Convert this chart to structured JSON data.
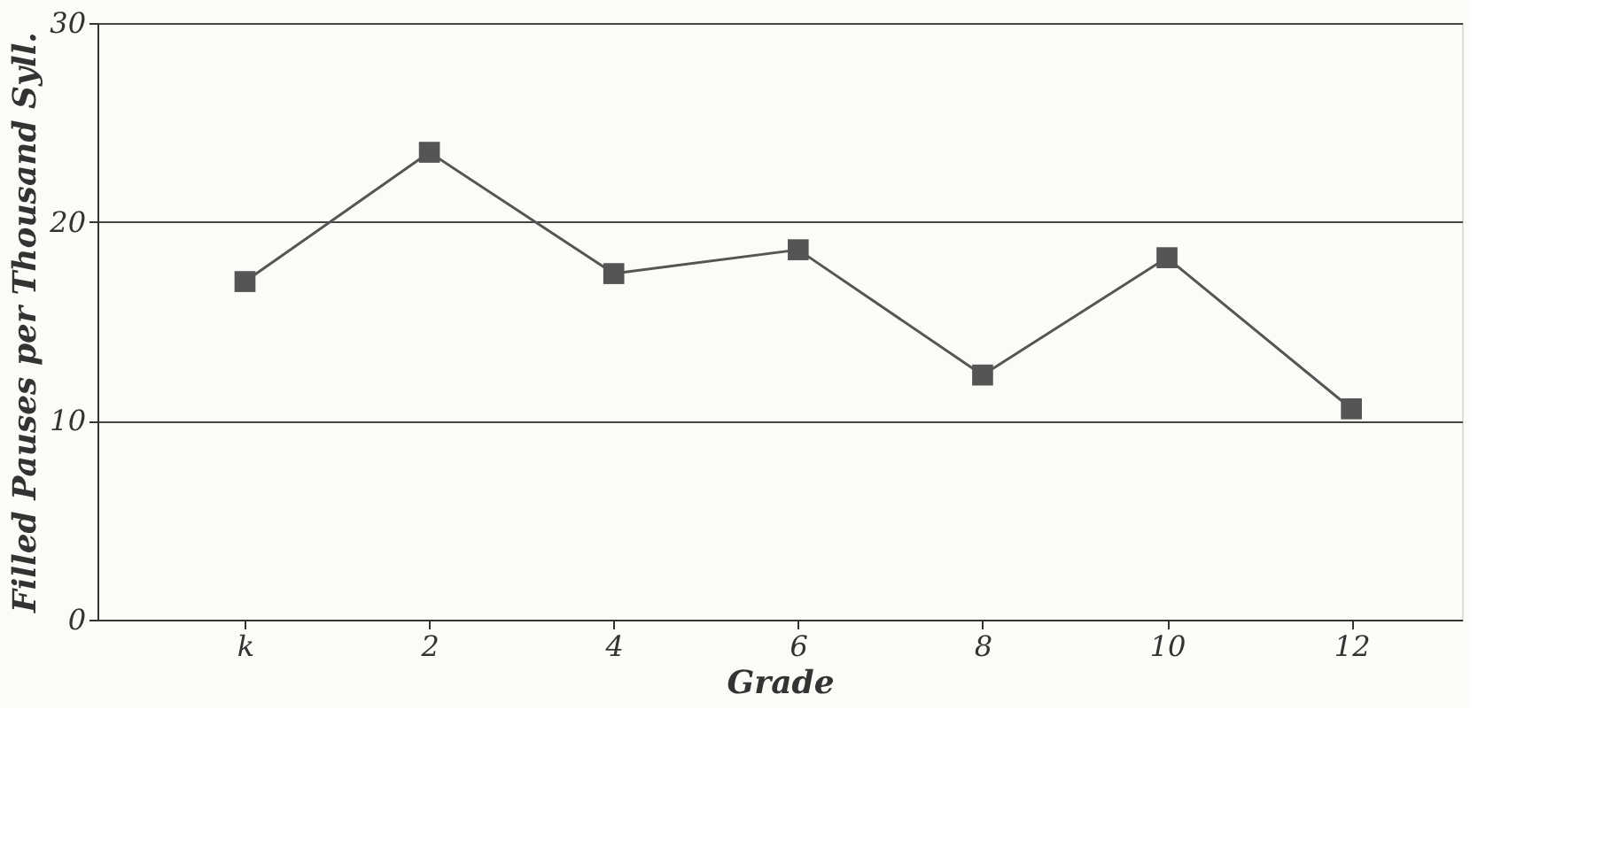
{
  "chart_data": {
    "type": "line",
    "xlabel": "Grade",
    "ylabel": "Filled Pauses per Thousand Syll.",
    "categories": [
      "k",
      "2",
      "4",
      "6",
      "8",
      "10",
      "12"
    ],
    "series": [
      {
        "color": "#555555",
        "values": [
          17.0,
          23.5,
          17.4,
          18.6,
          12.3,
          18.2,
          10.6
        ]
      }
    ],
    "ylim": [
      0,
      30
    ],
    "yticks": [
      0,
      10,
      20,
      30
    ],
    "grid": "y",
    "marker": "square",
    "line_style": "solid",
    "legend": false
  }
}
